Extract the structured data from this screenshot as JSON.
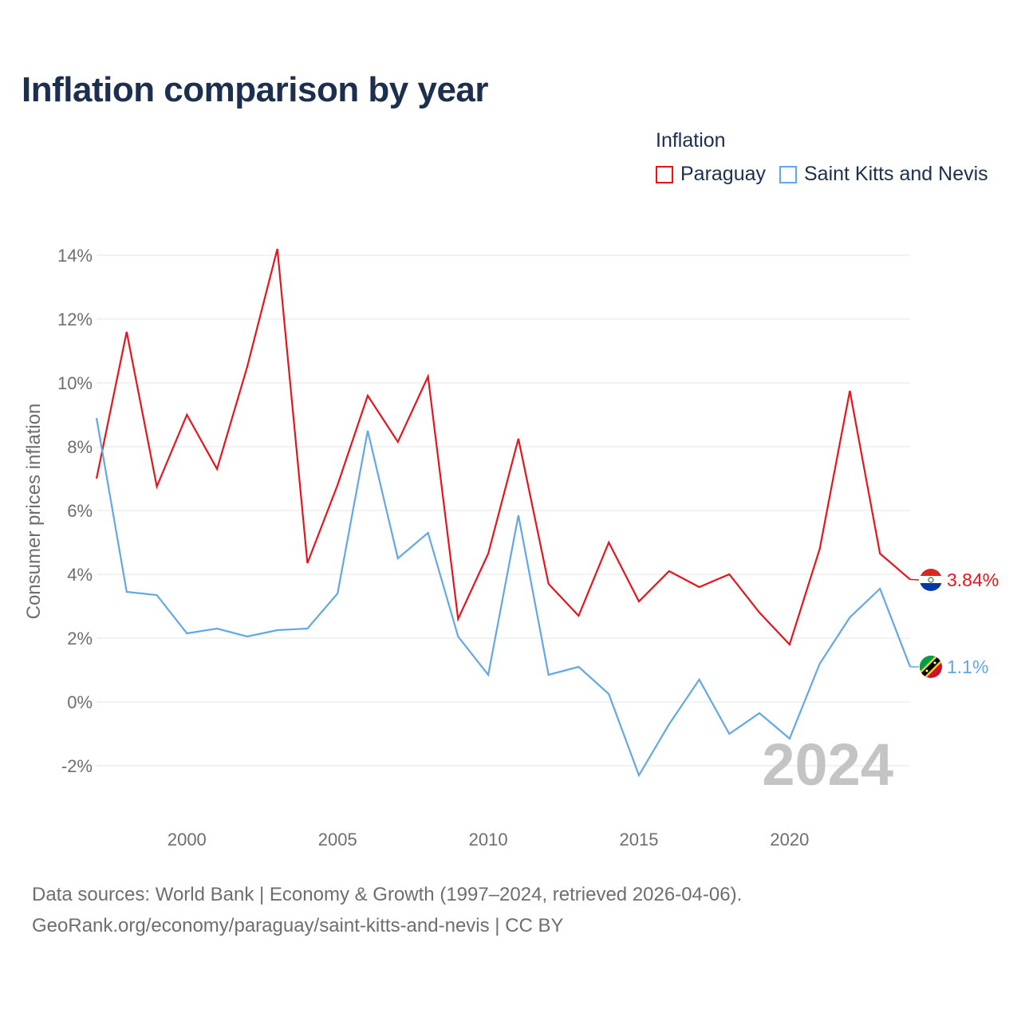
{
  "title": "Inflation comparison by year",
  "legend": {
    "title": "Inflation",
    "items": [
      {
        "label": "Paraguay",
        "color": "#e8141c"
      },
      {
        "label": "Saint Kitts and Nevis",
        "color": "#62a8e6"
      }
    ]
  },
  "footer": {
    "line1": "Data sources: World Bank | Economy & Growth (1997–2024, retrieved 2026-04-06).",
    "line2": "GeoRank.org/economy/paraguay/saint-kitts-and-nevis | CC BY"
  },
  "chart_data": {
    "type": "line",
    "ylabel": "Consumer prices inflation",
    "xlabel": "",
    "year_watermark": "2024",
    "x": [
      1997,
      1998,
      1999,
      2000,
      2001,
      2002,
      2003,
      2004,
      2005,
      2006,
      2007,
      2008,
      2009,
      2010,
      2011,
      2012,
      2013,
      2014,
      2015,
      2016,
      2017,
      2018,
      2019,
      2020,
      2021,
      2022,
      2023,
      2024
    ],
    "xlim": [
      1997,
      2024
    ],
    "ylim": [
      -3,
      14.5
    ],
    "yticks": [
      -2,
      0,
      2,
      4,
      6,
      8,
      10,
      12,
      14
    ],
    "ytick_labels": [
      "-2%",
      "0%",
      "2%",
      "4%",
      "6%",
      "8%",
      "10%",
      "12%",
      "14%"
    ],
    "xticks": [
      2000,
      2005,
      2010,
      2015,
      2020
    ],
    "xtick_labels": [
      "2000",
      "2005",
      "2010",
      "2015",
      "2020"
    ],
    "series": [
      {
        "name": "Paraguay",
        "color": "#e8141c",
        "end_label": "3.84%",
        "values": [
          7.0,
          11.6,
          6.75,
          9.0,
          7.3,
          10.5,
          14.2,
          4.35,
          6.8,
          9.6,
          8.15,
          10.2,
          2.6,
          4.65,
          8.25,
          3.7,
          2.7,
          5.0,
          3.15,
          4.1,
          3.6,
          4.0,
          2.8,
          1.8,
          4.8,
          9.75,
          4.65,
          3.84
        ]
      },
      {
        "name": "Saint Kitts and Nevis",
        "color": "#62a8e6",
        "end_label": "1.1%",
        "values": [
          8.9,
          3.45,
          3.35,
          2.15,
          2.3,
          2.05,
          2.25,
          2.3,
          3.4,
          8.5,
          4.5,
          5.3,
          2.05,
          0.85,
          5.85,
          0.85,
          1.1,
          0.25,
          -2.3,
          -0.7,
          0.7,
          -1.0,
          -0.35,
          -1.15,
          1.2,
          2.65,
          3.55,
          1.1
        ]
      }
    ]
  }
}
